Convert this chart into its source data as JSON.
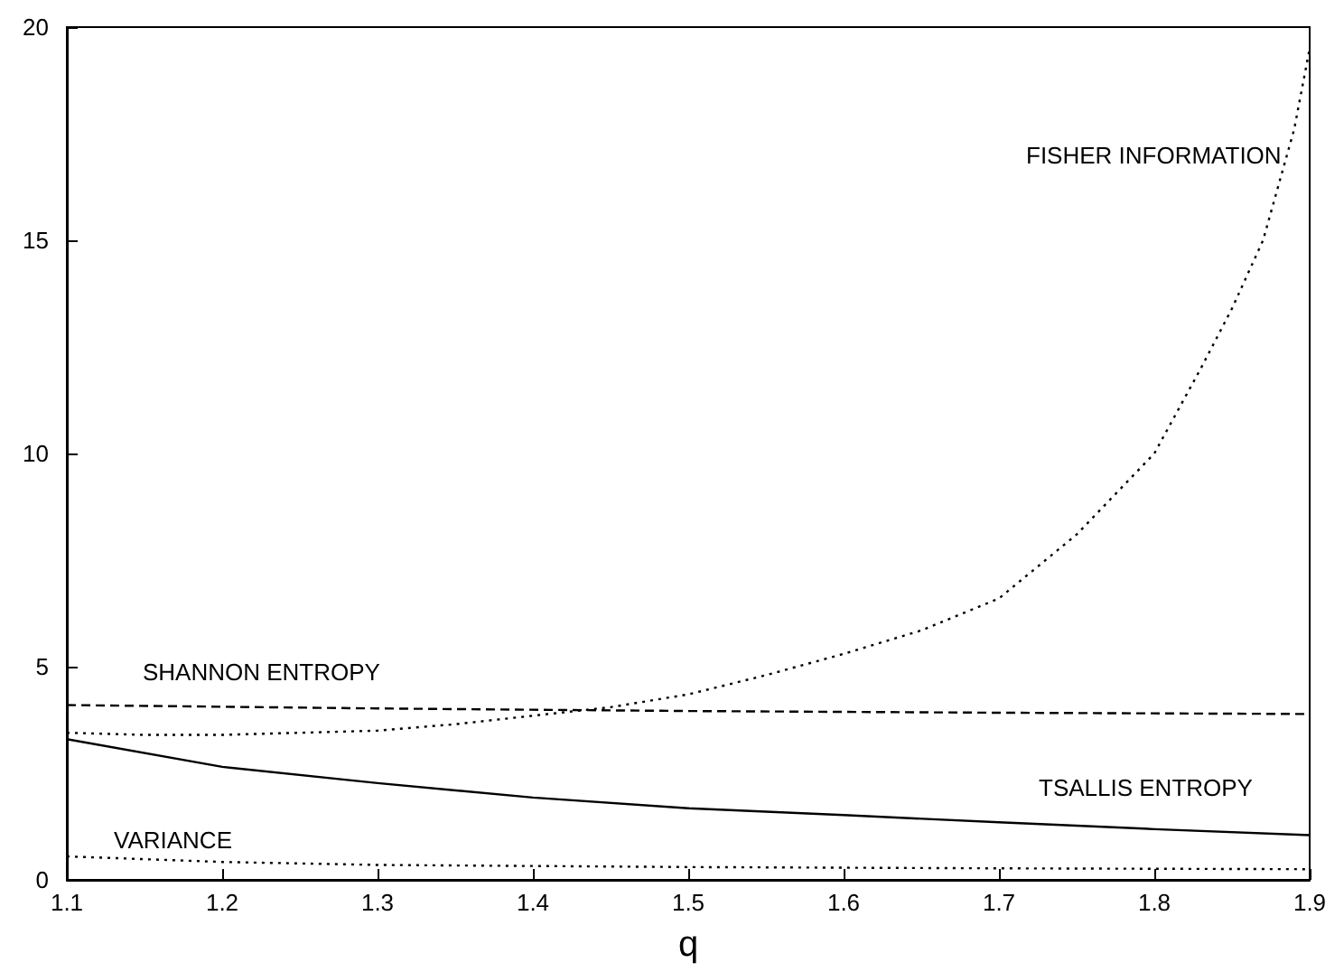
{
  "chart_data": {
    "type": "line",
    "xlabel": "q",
    "xlim": [
      1.1,
      1.9
    ],
    "xticks": [
      1.1,
      1.2,
      1.3,
      1.4,
      1.5,
      1.6,
      1.7,
      1.8,
      1.9
    ],
    "ylim": [
      0,
      20
    ],
    "yticks": [
      0,
      5,
      10,
      15,
      20
    ],
    "grid": false,
    "marker": "none",
    "series": [
      {
        "name": "FISHER INFORMATION",
        "color": "#000000",
        "line_style": "dotted",
        "x": [
          1.1,
          1.15,
          1.2,
          1.25,
          1.3,
          1.35,
          1.4,
          1.45,
          1.5,
          1.55,
          1.6,
          1.65,
          1.7,
          1.75,
          1.8,
          1.83,
          1.85,
          1.87,
          1.89,
          1.9
        ],
        "values": [
          3.45,
          3.4,
          3.4,
          3.45,
          3.5,
          3.65,
          3.85,
          4.05,
          4.35,
          4.8,
          5.3,
          5.85,
          6.6,
          8.1,
          10.0,
          12.0,
          13.4,
          15.0,
          17.6,
          19.5
        ]
      },
      {
        "name": "SHANNON ENTROPY",
        "color": "#000000",
        "line_style": "dashed",
        "x": [
          1.1,
          1.3,
          1.5,
          1.7,
          1.9
        ],
        "values": [
          4.1,
          4.02,
          3.96,
          3.92,
          3.89
        ]
      },
      {
        "name": "TSALLIS ENTROPY",
        "color": "#000000",
        "line_style": "solid",
        "x": [
          1.1,
          1.2,
          1.3,
          1.4,
          1.5,
          1.6,
          1.7,
          1.8,
          1.9
        ],
        "values": [
          3.3,
          2.65,
          2.27,
          1.93,
          1.68,
          1.52,
          1.35,
          1.19,
          1.05
        ]
      },
      {
        "name": "VARIANCE",
        "color": "#000000",
        "line_style": "dotted",
        "x": [
          1.1,
          1.2,
          1.3,
          1.5,
          1.7,
          1.9
        ],
        "values": [
          0.55,
          0.42,
          0.35,
          0.3,
          0.27,
          0.25
        ]
      }
    ]
  }
}
